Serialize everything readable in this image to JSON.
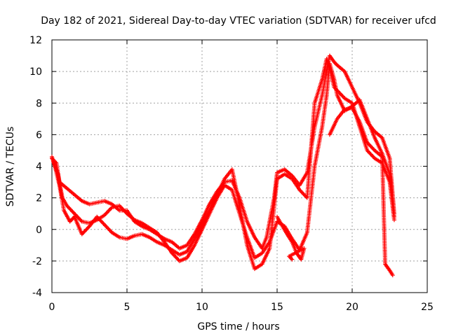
{
  "chart_data": {
    "type": "scatter",
    "title": "Day 182 of 2021, Sidereal Day-to-day VTEC variation (SDTVAR) for receiver ufcd",
    "xlabel": "GPS time / hours",
    "ylabel": "SDTVAR / TECUs",
    "xlim": [
      0,
      25
    ],
    "ylim": [
      -4,
      12
    ],
    "xticks": [
      0,
      5,
      10,
      15,
      20,
      25
    ],
    "yticks": [
      -4,
      -2,
      0,
      2,
      4,
      6,
      8,
      10,
      12
    ],
    "grid": true,
    "marker": "+",
    "color": "#ff0000",
    "series": [
      {
        "name": "trace-1",
        "points": [
          [
            0,
            4.5
          ],
          [
            0.3,
            4.2
          ],
          [
            0.5,
            3.0
          ],
          [
            1,
            2.6
          ],
          [
            1.5,
            2.2
          ],
          [
            2,
            1.8
          ],
          [
            2.5,
            1.6
          ],
          [
            3,
            1.7
          ],
          [
            3.5,
            1.8
          ],
          [
            4,
            1.6
          ],
          [
            4.5,
            1.2
          ],
          [
            5,
            1.2
          ],
          [
            5.5,
            0.5
          ],
          [
            6,
            0.2
          ],
          [
            6.5,
            0
          ],
          [
            7,
            -0.3
          ],
          [
            7.5,
            -0.6
          ],
          [
            8,
            -0.8
          ],
          [
            8.5,
            -1.2
          ],
          [
            9,
            -1.0
          ],
          [
            9.5,
            -0.3
          ],
          [
            10,
            0.6
          ],
          [
            10.5,
            1.6
          ],
          [
            11,
            2.4
          ],
          [
            11.5,
            3.0
          ],
          [
            12,
            3.1
          ],
          [
            12.5,
            2.0
          ],
          [
            13,
            0.5
          ],
          [
            13.5,
            -0.5
          ],
          [
            14,
            -1.2
          ],
          [
            14.3,
            -0.5
          ],
          [
            14.5,
            0.5
          ],
          [
            14.8,
            2.0
          ],
          [
            15,
            3.6
          ],
          [
            15.5,
            3.8
          ],
          [
            16,
            3.4
          ],
          [
            16.5,
            2.8
          ],
          [
            17,
            3.6
          ],
          [
            17.5,
            6.5
          ],
          [
            18,
            8.5
          ],
          [
            18.3,
            10.0
          ],
          [
            18.5,
            11.0
          ],
          [
            18.8,
            10.6
          ],
          [
            19,
            10.4
          ],
          [
            19.5,
            10.0
          ],
          [
            20,
            9.0
          ],
          [
            20.5,
            8.0
          ],
          [
            21,
            6.8
          ],
          [
            21.5,
            6.2
          ],
          [
            22,
            5.8
          ],
          [
            22.5,
            4.5
          ],
          [
            22.8,
            1.0
          ]
        ]
      },
      {
        "name": "trace-2",
        "points": [
          [
            0.1,
            4.3
          ],
          [
            0.4,
            3.5
          ],
          [
            0.7,
            2.0
          ],
          [
            1,
            1.5
          ],
          [
            1.5,
            1.0
          ],
          [
            2,
            0.5
          ],
          [
            2.5,
            0.4
          ],
          [
            3,
            0.6
          ],
          [
            3.5,
            0.9
          ],
          [
            4,
            1.4
          ],
          [
            4.5,
            1.5
          ],
          [
            5,
            1.0
          ],
          [
            5.5,
            0.6
          ],
          [
            6,
            0.4
          ],
          [
            6.5,
            0.1
          ],
          [
            7,
            -0.2
          ],
          [
            7.5,
            -0.8
          ],
          [
            8,
            -1.5
          ],
          [
            8.5,
            -2.0
          ],
          [
            9,
            -1.8
          ],
          [
            9.5,
            -1.0
          ],
          [
            10,
            0
          ],
          [
            10.5,
            1.0
          ],
          [
            11,
            2.0
          ],
          [
            11.5,
            2.8
          ],
          [
            12,
            2.5
          ],
          [
            12.5,
            1.0
          ],
          [
            13,
            -0.5
          ],
          [
            13.5,
            -1.8
          ],
          [
            14,
            -1.5
          ],
          [
            14.5,
            -0.8
          ],
          [
            15,
            0.5
          ],
          [
            15.5,
            0.2
          ],
          [
            16,
            -0.6
          ],
          [
            16.5,
            -1.3
          ],
          [
            17,
            -0.2
          ],
          [
            17.5,
            4.0
          ],
          [
            18,
            6.5
          ],
          [
            18.3,
            8.5
          ],
          [
            18.5,
            10.5
          ],
          [
            18.8,
            9.5
          ],
          [
            19,
            8.5
          ],
          [
            19.5,
            7.5
          ],
          [
            20,
            7.8
          ],
          [
            20.5,
            8.2
          ],
          [
            21,
            7.0
          ],
          [
            21.5,
            5.8
          ],
          [
            22,
            4.8
          ],
          [
            22.5,
            3.5
          ],
          [
            22.8,
            0.8
          ]
        ]
      },
      {
        "name": "trace-3",
        "points": [
          [
            0,
            4.6
          ],
          [
            0.2,
            4.0
          ],
          [
            0.5,
            2.8
          ],
          [
            0.8,
            1.2
          ],
          [
            1.2,
            0.5
          ],
          [
            1.5,
            0.8
          ],
          [
            2,
            -0.3
          ],
          [
            2.5,
            0.2
          ],
          [
            3,
            0.8
          ],
          [
            3.5,
            0.3
          ],
          [
            4,
            -0.2
          ],
          [
            4.5,
            -0.5
          ],
          [
            5,
            -0.6
          ],
          [
            5.5,
            -0.4
          ],
          [
            6,
            -0.3
          ],
          [
            6.5,
            -0.5
          ],
          [
            7,
            -0.8
          ],
          [
            7.5,
            -1.0
          ],
          [
            8,
            -1.3
          ],
          [
            8.5,
            -1.6
          ],
          [
            9,
            -1.4
          ],
          [
            9.5,
            -0.6
          ],
          [
            10,
            0.3
          ],
          [
            10.5,
            1.2
          ],
          [
            11,
            2.2
          ],
          [
            11.5,
            3.2
          ],
          [
            12,
            3.8
          ],
          [
            12.5,
            1.5
          ],
          [
            13,
            -1.0
          ],
          [
            13.5,
            -2.5
          ],
          [
            14,
            -2.2
          ],
          [
            14.5,
            -1.2
          ],
          [
            15,
            3.2
          ],
          [
            15.5,
            3.5
          ],
          [
            16,
            3.2
          ],
          [
            16.5,
            2.5
          ],
          [
            17,
            2.0
          ],
          [
            17.5,
            8.0
          ],
          [
            18,
            9.5
          ],
          [
            18.3,
            10.8
          ],
          [
            18.5,
            10.2
          ],
          [
            18.8,
            9.0
          ],
          [
            19,
            8.8
          ],
          [
            19.5,
            8.3
          ],
          [
            20,
            8.0
          ],
          [
            20.5,
            6.5
          ],
          [
            21,
            5.0
          ],
          [
            21.5,
            4.5
          ],
          [
            22,
            4.2
          ],
          [
            22.5,
            3.0
          ],
          [
            22.8,
            0.6
          ]
        ]
      },
      {
        "name": "trace-4",
        "points": [
          [
            18.5,
            6.0
          ],
          [
            19,
            7.0
          ],
          [
            19.5,
            7.6
          ],
          [
            20,
            7.7
          ],
          [
            20.5,
            6.8
          ],
          [
            21,
            5.5
          ],
          [
            21.5,
            5.0
          ],
          [
            22,
            4.6
          ],
          [
            22.2,
            -2.2
          ],
          [
            22.5,
            -2.6
          ],
          [
            22.7,
            -2.9
          ]
        ]
      },
      {
        "name": "trace-5",
        "points": [
          [
            15,
            0.8
          ],
          [
            15.3,
            0.3
          ],
          [
            15.6,
            -0.2
          ],
          [
            16,
            -0.8
          ],
          [
            16.3,
            -1.5
          ],
          [
            16.6,
            -1.9
          ],
          [
            16.8,
            -1.2
          ],
          [
            15.8,
            -1.7
          ],
          [
            16,
            -1.9
          ]
        ]
      }
    ]
  }
}
